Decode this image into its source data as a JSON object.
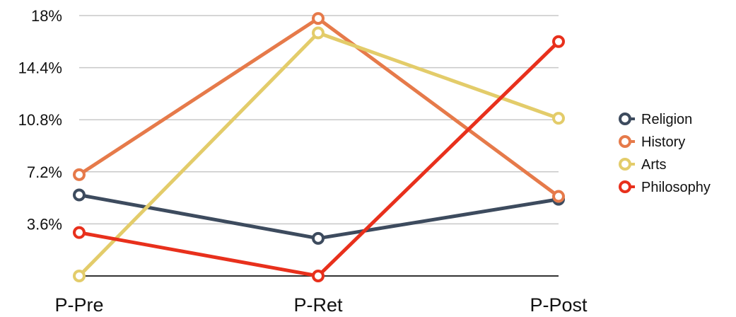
{
  "chart_data": {
    "type": "line",
    "title": "",
    "xlabel": "",
    "ylabel": "",
    "categories": [
      "P-Pre",
      "P-Ret",
      "P-Post"
    ],
    "ylim": [
      0,
      18
    ],
    "yticks": [
      3.6,
      7.2,
      10.8,
      14.4,
      18
    ],
    "ytick_labels": [
      "3.6%",
      "7.2%",
      "10.8%",
      "14.4%",
      "18%"
    ],
    "grid": true,
    "legend_position": "right",
    "series": [
      {
        "name": "Religion",
        "color": "#3d4b5e",
        "values": [
          5.6,
          2.6,
          5.3
        ]
      },
      {
        "name": "History",
        "color": "#e67a4a",
        "values": [
          7.0,
          17.8,
          5.5
        ]
      },
      {
        "name": "Arts",
        "color": "#e3cc6a",
        "values": [
          0.0,
          16.8,
          10.9
        ]
      },
      {
        "name": "Philosophy",
        "color": "#e8301c",
        "values": [
          3.0,
          0.0,
          16.2
        ]
      }
    ]
  }
}
